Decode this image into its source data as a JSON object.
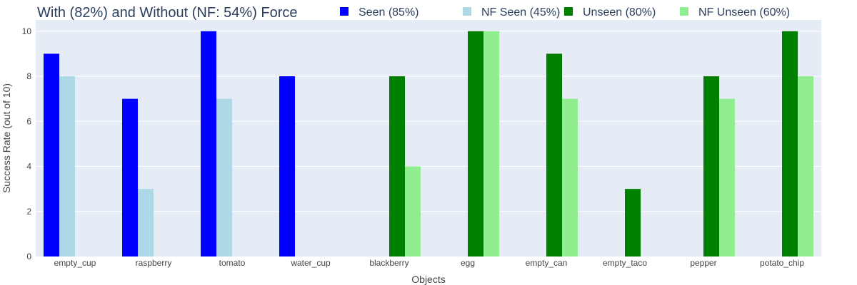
{
  "chart_data": {
    "type": "bar",
    "title": "With (82%) and Without (NF: 54%) Force",
    "xlabel": "Objects",
    "ylabel": "Success Rate (out of 10)",
    "ylim": [
      0,
      10.5
    ],
    "yticks": [
      0,
      2,
      4,
      6,
      8,
      10
    ],
    "grid": true,
    "legend_position": "top",
    "categories": [
      "empty_cup",
      "raspberry",
      "tomato",
      "water_cup",
      "blackberry",
      "egg",
      "empty_can",
      "empty_taco",
      "pepper",
      "potato_chip"
    ],
    "series": [
      {
        "name": "Seen (85%)",
        "color": "#0000ff",
        "values": [
          9,
          7,
          10,
          8,
          0,
          0,
          0,
          0,
          0,
          0
        ]
      },
      {
        "name": "NF Seen (45%)",
        "color": "#add8e6",
        "values": [
          8,
          3,
          7,
          0,
          0,
          0,
          0,
          0,
          0,
          0
        ]
      },
      {
        "name": "Unseen (80%)",
        "color": "#008000",
        "values": [
          0,
          0,
          0,
          0,
          8,
          10,
          9,
          3,
          8,
          10
        ]
      },
      {
        "name": "NF Unseen (60%)",
        "color": "#90ee90",
        "values": [
          0,
          0,
          0,
          0,
          4,
          10,
          7,
          0,
          7,
          8
        ]
      }
    ]
  }
}
